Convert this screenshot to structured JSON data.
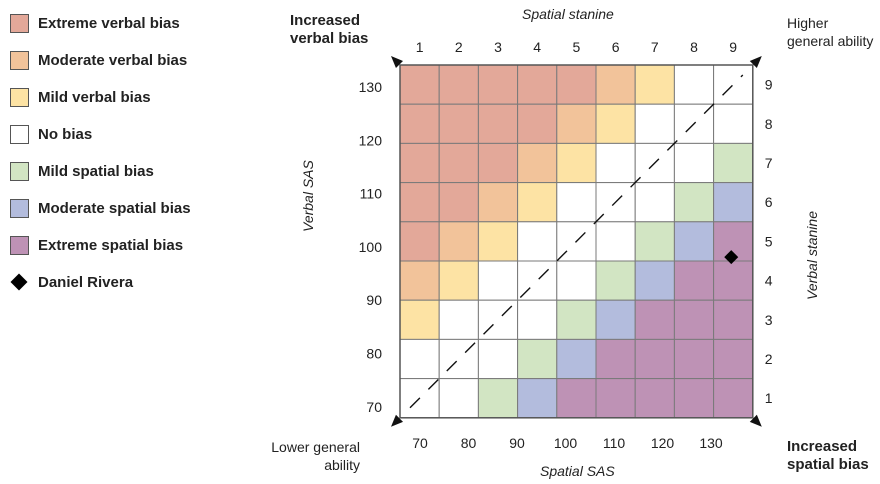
{
  "legend": [
    {
      "key": "extreme_verbal",
      "label": "Extreme verbal bias",
      "color": "#E3A899"
    },
    {
      "key": "moderate_verbal",
      "label": "Moderate verbal bias",
      "color": "#F2C39A"
    },
    {
      "key": "mild_verbal",
      "label": "Mild verbal bias",
      "color": "#FDE3A4"
    },
    {
      "key": "no_bias",
      "label": "No bias",
      "color": "#FFFFFF"
    },
    {
      "key": "mild_spatial",
      "label": "Mild spatial bias",
      "color": "#D2E5C3"
    },
    {
      "key": "moderate_spatial",
      "label": "Moderate spatial bias",
      "color": "#B3BCDD"
    },
    {
      "key": "extreme_spatial",
      "label": "Extreme spatial bias",
      "color": "#BE92B5"
    }
  ],
  "marker_label": "Daniel Rivera",
  "axes": {
    "top_title": "Spatial stanine",
    "bottom_title": "Spatial SAS",
    "left_title": "Verbal SAS",
    "right_title": "Verbal stanine",
    "top_ticks": [
      "1",
      "2",
      "3",
      "4",
      "5",
      "6",
      "7",
      "8",
      "9"
    ],
    "bottom_ticks": [
      "70",
      "80",
      "90",
      "100",
      "110",
      "120",
      "130"
    ],
    "left_ticks": [
      "130",
      "120",
      "110",
      "100",
      "90",
      "80",
      "70"
    ],
    "right_ticks": [
      "9",
      "8",
      "7",
      "6",
      "5",
      "4",
      "3",
      "2",
      "1"
    ]
  },
  "corners": {
    "top_left": [
      "Increased",
      "verbal bias"
    ],
    "top_right": [
      "Higher",
      "general ability"
    ],
    "bottom_left": [
      "Lower general",
      "ability"
    ],
    "bottom_right": [
      "Increased",
      "spatial bias"
    ]
  },
  "grid": {
    "rows_top_to_bottom": [
      [
        -3,
        -3,
        -3,
        -3,
        -3,
        -2,
        -1,
        0,
        0
      ],
      [
        -3,
        -3,
        -3,
        -3,
        -2,
        -1,
        0,
        0,
        0
      ],
      [
        -3,
        -3,
        -3,
        -2,
        -1,
        0,
        0,
        0,
        1
      ],
      [
        -3,
        -3,
        -2,
        -1,
        0,
        0,
        0,
        1,
        2
      ],
      [
        -3,
        -2,
        -1,
        0,
        0,
        0,
        1,
        2,
        3
      ],
      [
        -2,
        -1,
        0,
        0,
        0,
        1,
        2,
        3,
        3
      ],
      [
        -1,
        0,
        0,
        0,
        1,
        2,
        3,
        3,
        3
      ],
      [
        0,
        0,
        0,
        1,
        2,
        3,
        3,
        3,
        3
      ],
      [
        0,
        0,
        1,
        2,
        3,
        3,
        3,
        3,
        3
      ]
    ],
    "bias_key_order": [
      "-3",
      "-2",
      "-1",
      "0",
      "1",
      "2",
      "3"
    ]
  },
  "marker": {
    "spatial_stanine": 9,
    "verbal_stanine": 5
  }
}
